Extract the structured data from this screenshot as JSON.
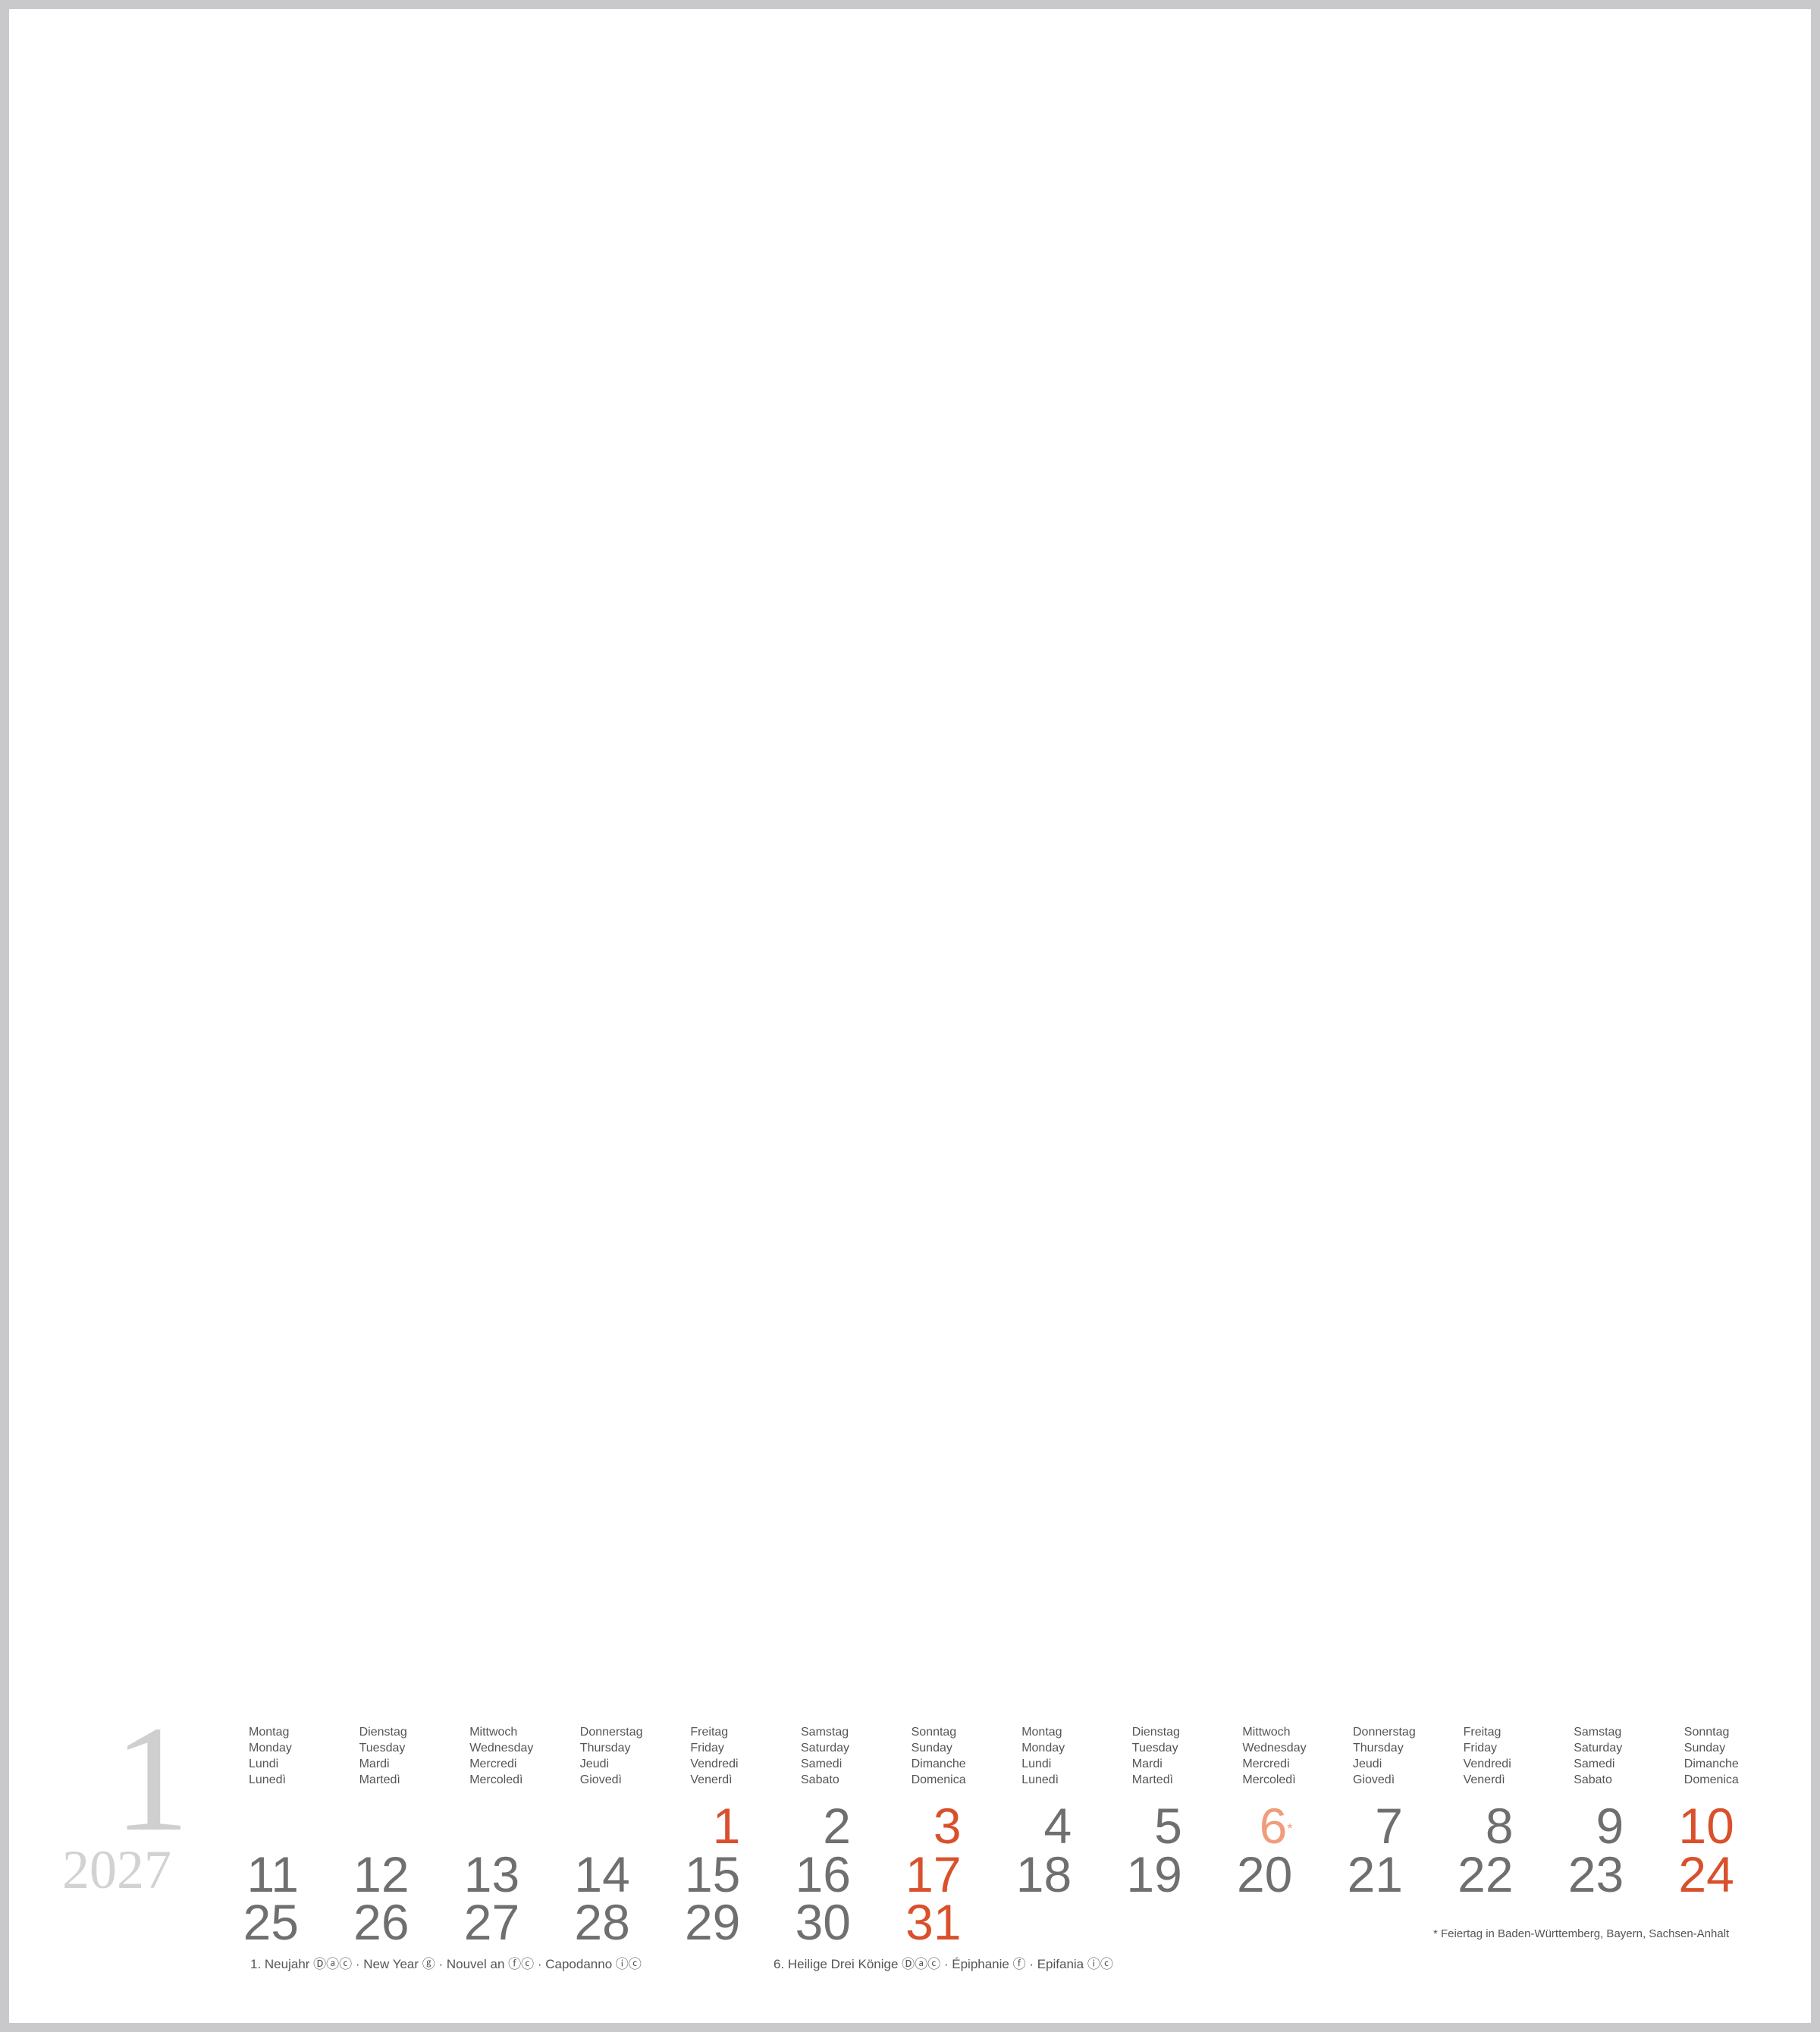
{
  "month": "1",
  "year": "2027",
  "weekday_headers": [
    [
      "Montag",
      "Monday",
      "Lundi",
      "Lunedì"
    ],
    [
      "Dienstag",
      "Tuesday",
      "Mardi",
      "Martedì"
    ],
    [
      "Mittwoch",
      "Wednesday",
      "Mercredi",
      "Mercoledì"
    ],
    [
      "Donnerstag",
      "Thursday",
      "Jeudi",
      "Giovedì"
    ],
    [
      "Freitag",
      "Friday",
      "Vendredi",
      "Venerdì"
    ],
    [
      "Samstag",
      "Saturday",
      "Samedi",
      "Sabato"
    ],
    [
      "Sonntag",
      "Sunday",
      "Dimanche",
      "Domenica"
    ],
    [
      "Montag",
      "Monday",
      "Lundi",
      "Lunedì"
    ],
    [
      "Dienstag",
      "Tuesday",
      "Mardi",
      "Martedì"
    ],
    [
      "Mittwoch",
      "Wednesday",
      "Mercredi",
      "Mercoledì"
    ],
    [
      "Donnerstag",
      "Thursday",
      "Jeudi",
      "Giovedì"
    ],
    [
      "Freitag",
      "Friday",
      "Vendredi",
      "Venerdì"
    ],
    [
      "Samstag",
      "Saturday",
      "Samedi",
      "Sabato"
    ],
    [
      "Sonntag",
      "Sunday",
      "Dimanche",
      "Domenica"
    ]
  ],
  "days": [
    {
      "n": "1",
      "row": 0,
      "col": 4,
      "style": "red"
    },
    {
      "n": "2",
      "row": 0,
      "col": 5,
      "style": ""
    },
    {
      "n": "3",
      "row": 0,
      "col": 6,
      "style": "red"
    },
    {
      "n": "4",
      "row": 0,
      "col": 7,
      "style": ""
    },
    {
      "n": "5",
      "row": 0,
      "col": 8,
      "style": ""
    },
    {
      "n": "6",
      "row": 0,
      "col": 9,
      "style": "light",
      "mark": "*"
    },
    {
      "n": "7",
      "row": 0,
      "col": 10,
      "style": ""
    },
    {
      "n": "8",
      "row": 0,
      "col": 11,
      "style": ""
    },
    {
      "n": "9",
      "row": 0,
      "col": 12,
      "style": ""
    },
    {
      "n": "10",
      "row": 0,
      "col": 13,
      "style": "red"
    },
    {
      "n": "11",
      "row": 1,
      "col": 0,
      "style": ""
    },
    {
      "n": "12",
      "row": 1,
      "col": 1,
      "style": ""
    },
    {
      "n": "13",
      "row": 1,
      "col": 2,
      "style": ""
    },
    {
      "n": "14",
      "row": 1,
      "col": 3,
      "style": ""
    },
    {
      "n": "15",
      "row": 1,
      "col": 4,
      "style": ""
    },
    {
      "n": "16",
      "row": 1,
      "col": 5,
      "style": ""
    },
    {
      "n": "17",
      "row": 1,
      "col": 6,
      "style": "red"
    },
    {
      "n": "18",
      "row": 1,
      "col": 7,
      "style": ""
    },
    {
      "n": "19",
      "row": 1,
      "col": 8,
      "style": ""
    },
    {
      "n": "20",
      "row": 1,
      "col": 9,
      "style": ""
    },
    {
      "n": "21",
      "row": 1,
      "col": 10,
      "style": ""
    },
    {
      "n": "22",
      "row": 1,
      "col": 11,
      "style": ""
    },
    {
      "n": "23",
      "row": 1,
      "col": 12,
      "style": ""
    },
    {
      "n": "24",
      "row": 1,
      "col": 13,
      "style": "red"
    },
    {
      "n": "25",
      "row": 2,
      "col": 0,
      "style": ""
    },
    {
      "n": "26",
      "row": 2,
      "col": 1,
      "style": ""
    },
    {
      "n": "27",
      "row": 2,
      "col": 2,
      "style": ""
    },
    {
      "n": "28",
      "row": 2,
      "col": 3,
      "style": ""
    },
    {
      "n": "29",
      "row": 2,
      "col": 4,
      "style": ""
    },
    {
      "n": "30",
      "row": 2,
      "col": 5,
      "style": ""
    },
    {
      "n": "31",
      "row": 2,
      "col": 6,
      "style": "red"
    }
  ],
  "holidays": [
    "1. Neujahr Ⓓⓐⓒ · New Year ⓖ · Nouvel an ⓕⓒ · Capodanno ⓘⓒ",
    "6. Heilige Drei Könige Ⓓⓐⓒ · Épiphanie ⓕ · Epifania ⓘⓒ"
  ],
  "footnote": "* Feiertag in Baden-Württemberg, Bayern, Sachsen-Anhalt",
  "colors": {
    "sunday_holiday": "#d9502c",
    "regional_holiday": "#ef9d7c",
    "weekday": "#6f6f6f",
    "border": "#c9c9cb"
  }
}
